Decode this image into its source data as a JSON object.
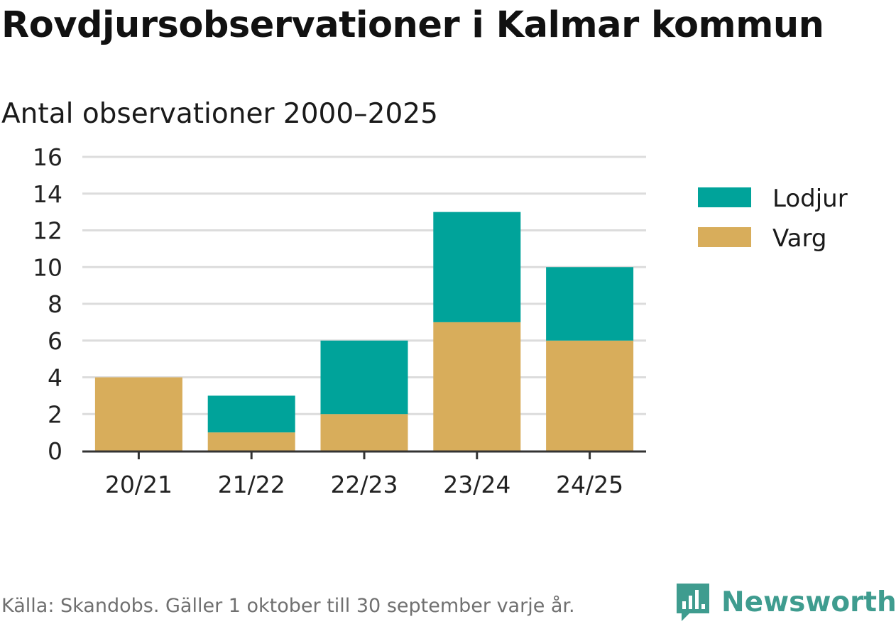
{
  "colors": {
    "lodjur": "#00a39a",
    "varg": "#d8ad5b",
    "grid": "#dcdcdc",
    "axis": "#333333",
    "brand": "#3f9c8f"
  },
  "chart_data": {
    "type": "bar",
    "stacked": true,
    "title": "Rovdjursobservationer i Kalmar kommun",
    "subtitle": "Antal observationer 2000–2025",
    "xlabel": "",
    "ylabel": "",
    "categories": [
      "20/21",
      "21/22",
      "22/23",
      "23/24",
      "24/25"
    ],
    "series": [
      {
        "name": "Varg",
        "values": [
          4,
          1,
          2,
          7,
          6
        ]
      },
      {
        "name": "Lodjur",
        "values": [
          0,
          2,
          4,
          6,
          4
        ]
      }
    ],
    "ylim": [
      0,
      16
    ],
    "yticks": [
      "0",
      "2",
      "4",
      "6",
      "8",
      "10",
      "12",
      "14",
      "16"
    ],
    "grid": true,
    "legend": {
      "placement": "right",
      "entries": [
        "Lodjur",
        "Varg"
      ]
    }
  },
  "footer": {
    "source": "Källa: Skandobs. Gäller 1 oktober till 30 september varje år.",
    "brand": "Newsworthy",
    "brand_icon": "newsworthy-logo-icon"
  }
}
